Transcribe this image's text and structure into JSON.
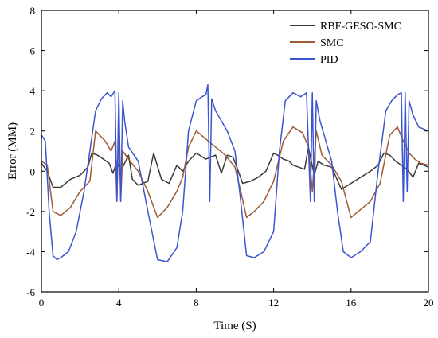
{
  "chart_data": {
    "type": "line",
    "title": "",
    "xlabel": "Time (S)",
    "ylabel": "Error (MM)",
    "xlim": [
      0,
      20
    ],
    "ylim": [
      -6,
      8
    ],
    "xticks": [
      0,
      4,
      8,
      12,
      16,
      20
    ],
    "yticks": [
      -6,
      -4,
      -2,
      0,
      2,
      4,
      6,
      8
    ],
    "grid": false,
    "legend_position": "top-right",
    "series": [
      {
        "name": "RBF-GESO-SMC",
        "color": "#3a3a3a",
        "x": [
          0,
          0.3,
          0.6,
          1.0,
          1.5,
          2.0,
          2.4,
          2.6,
          2.9,
          3.2,
          3.5,
          3.7,
          3.9,
          4.1,
          4.3,
          4.5,
          4.7,
          5.0,
          5.5,
          5.8,
          6.2,
          6.6,
          7.0,
          7.3,
          7.6,
          8.0,
          8.5,
          9.0,
          9.3,
          9.6,
          9.9,
          10.1,
          10.4,
          10.8,
          11.2,
          11.6,
          12.0,
          12.2,
          12.5,
          12.8,
          13.0,
          13.3,
          13.6,
          13.8,
          14.1,
          14.3,
          14.6,
          15.0,
          15.5,
          16.0,
          16.5,
          17.0,
          17.4,
          17.7,
          18.0,
          18.3,
          18.6,
          18.9,
          19.2,
          19.5,
          20.0
        ],
        "y": [
          0.4,
          0.0,
          -0.8,
          -0.8,
          -0.4,
          -0.2,
          0.2,
          0.9,
          0.8,
          0.6,
          0.4,
          -0.1,
          0.5,
          0.0,
          0.4,
          0.8,
          -0.4,
          -0.7,
          -0.5,
          0.9,
          -0.4,
          -0.6,
          0.3,
          0.0,
          0.5,
          0.9,
          0.6,
          0.8,
          -0.1,
          0.8,
          0.7,
          0.2,
          -0.6,
          -0.5,
          -0.3,
          0.0,
          0.9,
          0.8,
          0.6,
          0.5,
          0.3,
          0.2,
          0.1,
          1.2,
          -0.2,
          0.5,
          0.3,
          0.2,
          -0.9,
          -0.6,
          -0.3,
          0.0,
          0.3,
          0.9,
          0.8,
          0.5,
          0.3,
          0.1,
          -0.3,
          0.4,
          0.2
        ]
      },
      {
        "name": "SMC",
        "color": "#9e5a33",
        "x": [
          0,
          0.3,
          0.6,
          1.0,
          1.5,
          2.0,
          2.5,
          2.8,
          3.0,
          3.3,
          3.6,
          3.8,
          3.9,
          4.0,
          4.1,
          4.2,
          4.5,
          5.0,
          5.5,
          6.0,
          6.5,
          7.0,
          7.3,
          7.6,
          8.0,
          8.5,
          9.0,
          9.5,
          10.0,
          10.3,
          10.6,
          11.0,
          11.5,
          12.0,
          12.5,
          13.0,
          13.5,
          13.8,
          14.0,
          14.2,
          14.5,
          15.0,
          15.5,
          16.0,
          16.5,
          17.0,
          17.5,
          18.0,
          18.4,
          18.7,
          19.0,
          19.3,
          19.6,
          20.0
        ],
        "y": [
          0.5,
          0.3,
          -2.0,
          -2.2,
          -1.8,
          -1.0,
          -0.5,
          2.0,
          1.8,
          1.5,
          1.0,
          1.5,
          -1.5,
          2.5,
          -1.5,
          1.0,
          0.6,
          0.0,
          -1.0,
          -2.3,
          -1.8,
          -1.0,
          -0.3,
          1.2,
          2.0,
          1.6,
          1.2,
          0.8,
          0.2,
          -1.0,
          -2.3,
          -2.0,
          -1.5,
          -0.5,
          1.5,
          2.2,
          1.9,
          1.2,
          -1.0,
          2.0,
          0.8,
          0.3,
          -0.5,
          -2.3,
          -1.9,
          -1.5,
          -0.6,
          1.8,
          2.2,
          1.5,
          0.9,
          0.6,
          0.4,
          0.3
        ]
      },
      {
        "name": "PID",
        "color": "#3b55d0",
        "x": [
          0,
          0.2,
          0.4,
          0.6,
          0.8,
          1.0,
          1.4,
          1.8,
          2.2,
          2.5,
          2.8,
          3.1,
          3.4,
          3.6,
          3.8,
          3.9,
          4.0,
          4.1,
          4.2,
          4.3,
          4.5,
          5.0,
          5.5,
          6.0,
          6.5,
          7.0,
          7.3,
          7.6,
          8.0,
          8.3,
          8.5,
          8.6,
          8.7,
          8.8,
          9.0,
          9.3,
          9.6,
          10.0,
          10.3,
          10.6,
          11.0,
          11.5,
          12.0,
          12.3,
          12.6,
          13.0,
          13.4,
          13.7,
          13.9,
          14.0,
          14.1,
          14.2,
          14.4,
          14.7,
          15.0,
          15.3,
          15.6,
          16.0,
          16.5,
          17.0,
          17.4,
          17.8,
          18.1,
          18.4,
          18.6,
          18.7,
          18.8,
          18.9,
          19.0,
          19.2,
          19.5,
          20.0
        ],
        "y": [
          1.8,
          1.5,
          -2.0,
          -4.2,
          -4.4,
          -4.3,
          -4.0,
          -3.0,
          -1.0,
          1.0,
          3.0,
          3.6,
          3.9,
          3.7,
          4.0,
          -1.5,
          3.9,
          -1.5,
          3.5,
          2.5,
          1.2,
          0.5,
          -2.0,
          -4.4,
          -4.5,
          -3.8,
          -2.0,
          2.0,
          3.5,
          3.7,
          3.8,
          4.3,
          -1.5,
          3.6,
          3.0,
          2.5,
          2.0,
          1.0,
          -1.5,
          -4.2,
          -4.3,
          -4.0,
          -3.0,
          1.0,
          3.5,
          3.9,
          3.7,
          3.9,
          -1.5,
          3.9,
          -1.5,
          3.5,
          2.5,
          1.5,
          0.5,
          -2.0,
          -4.0,
          -4.3,
          -4.0,
          -3.5,
          0.0,
          3.0,
          3.5,
          3.8,
          3.9,
          -1.5,
          3.9,
          -1.0,
          3.5,
          2.8,
          2.2,
          2.0
        ]
      }
    ]
  }
}
